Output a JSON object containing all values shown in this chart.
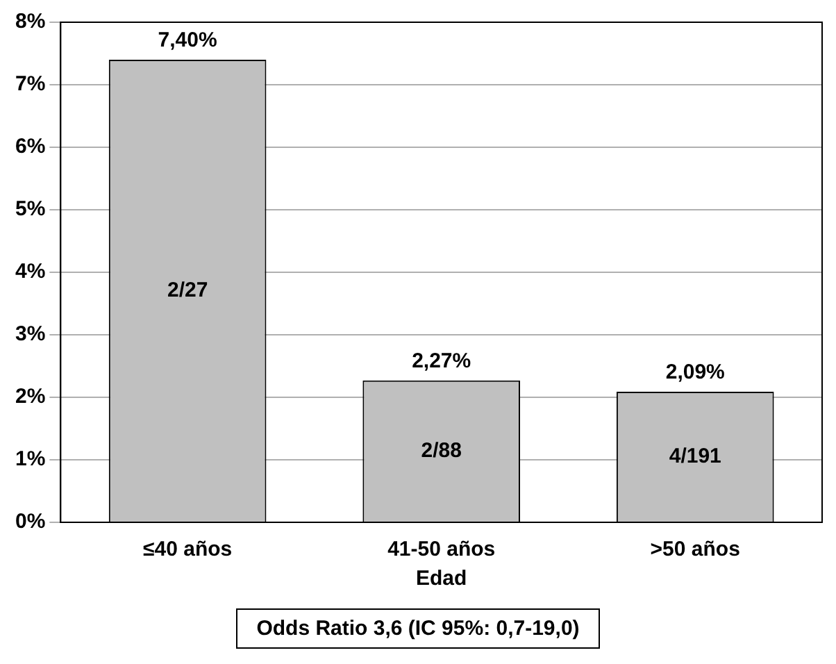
{
  "chart_data": {
    "type": "bar",
    "xlabel": "Edad",
    "categories": [
      "≤40 años",
      "41-50 años",
      ">50 años"
    ],
    "values": [
      7.4,
      2.27,
      2.09
    ],
    "value_labels": [
      "7,40%",
      "2,27%",
      "2,09%"
    ],
    "color": "#c0c0c0",
    "ylim": [
      0,
      8
    ],
    "yticks": [
      {
        "value": 0,
        "label": "0%"
      },
      {
        "value": 1,
        "label": "1%"
      },
      {
        "value": 2,
        "label": "2%"
      },
      {
        "value": 3,
        "label": "3%"
      },
      {
        "value": 4,
        "label": "4%"
      },
      {
        "value": 5,
        "label": "5%"
      },
      {
        "value": 6,
        "label": "6%"
      },
      {
        "value": 7,
        "label": "7%"
      },
      {
        "value": 8,
        "label": "8%"
      }
    ],
    "grid": "y",
    "legend": false,
    "annotations": [
      "2/27",
      "2/88",
      "4/191",
      "Odds Ratio 3,6 (IC 95%: 0,7-19,0)"
    ]
  }
}
